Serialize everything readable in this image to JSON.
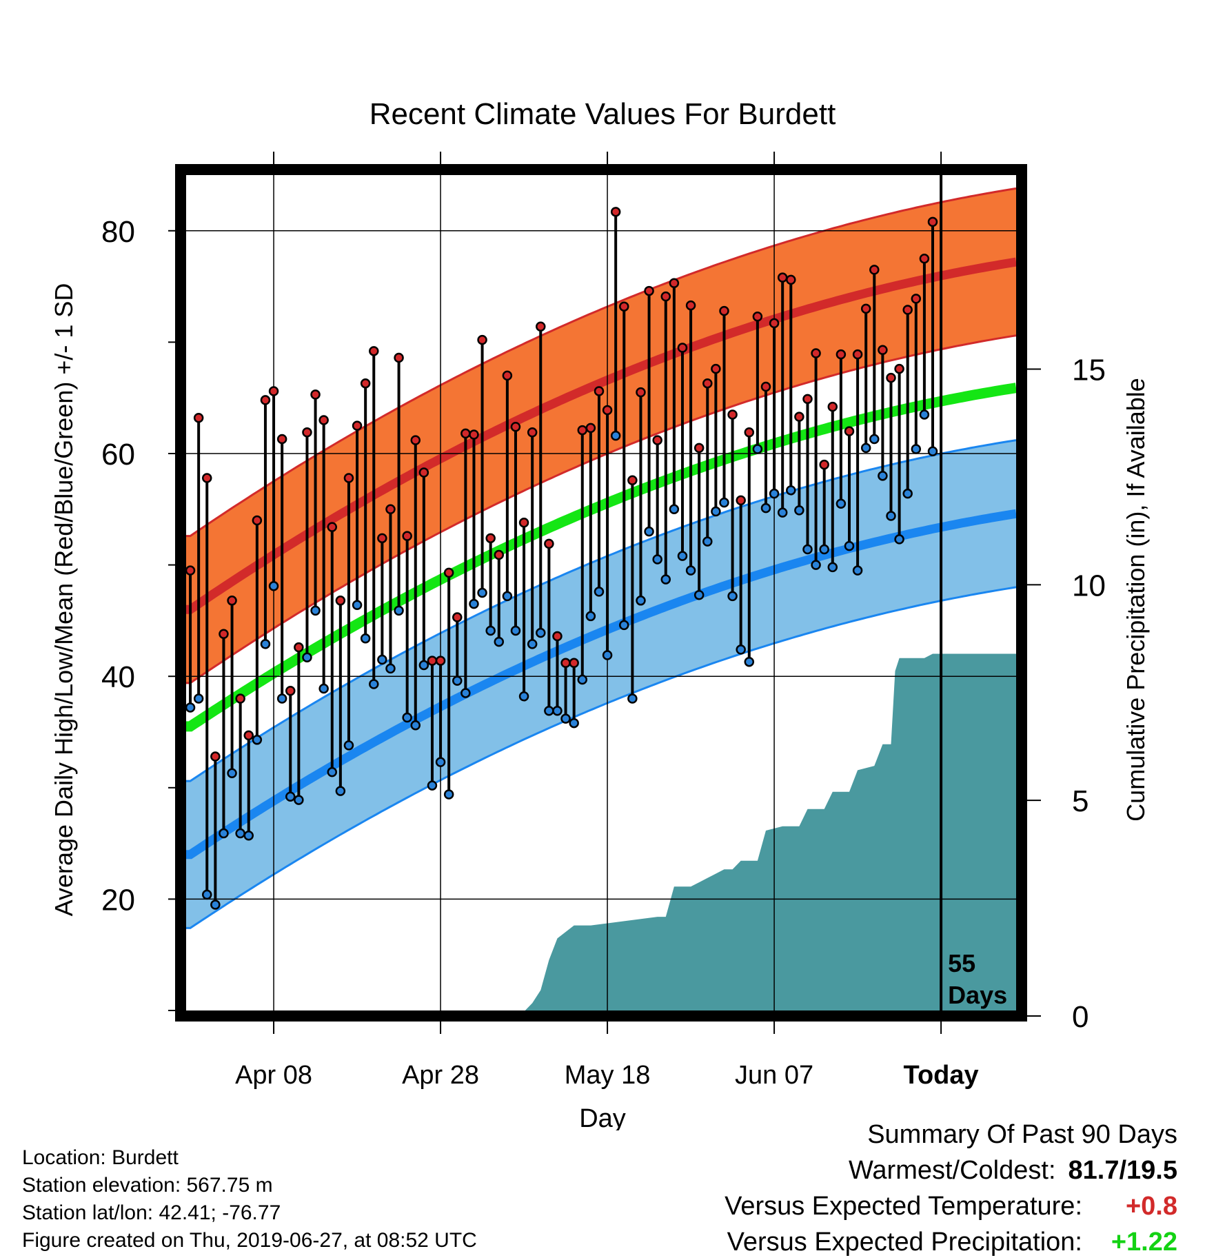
{
  "chart_data": {
    "type": "line",
    "title": "Recent Climate Values For Burdett",
    "xlabel": "Day",
    "ylabel": "Average Daily High/Low/Mean (Red/Blue/Green) +/- 1 SD",
    "y2label": "Cumulative Precipitation (in), If Available",
    "x_tick_labels": [
      "Apr 08",
      "Apr 28",
      "May 18",
      "Jun 07",
      "Today"
    ],
    "x_tick_days": [
      10,
      30,
      50,
      70,
      90
    ],
    "y_ticks": [
      20,
      40,
      60,
      80
    ],
    "y2_ticks": [
      0,
      5,
      10,
      15
    ],
    "ylim": [
      10,
      85
    ],
    "y2lim": [
      0,
      19.5
    ],
    "xlim": [
      -0.5,
      99
    ],
    "today_annotation": "55\nDays",
    "highs": [
      49.5,
      63.2,
      57.8,
      32.8,
      43.8,
      46.8,
      38.0,
      34.7,
      54.0,
      64.8,
      65.6,
      61.3,
      38.7,
      42.6,
      61.9,
      65.3,
      63.0,
      53.4,
      46.8,
      57.8,
      62.5,
      66.3,
      69.2,
      52.4,
      55.0,
      68.6,
      52.6,
      61.2,
      58.3,
      41.4,
      41.4,
      49.3,
      45.3,
      61.8,
      61.7,
      70.2,
      52.4,
      50.9,
      67.0,
      62.4,
      53.8,
      61.9,
      71.4,
      51.9,
      43.6,
      41.2,
      41.2,
      62.1,
      62.3,
      65.6,
      63.9,
      81.7,
      73.2,
      57.6,
      65.5,
      74.6,
      61.2,
      74.1,
      75.3,
      69.5,
      73.3,
      60.5,
      66.3,
      67.6,
      72.8,
      63.5,
      55.8,
      61.9,
      72.3,
      66.0,
      71.7,
      75.8,
      75.6,
      63.3,
      64.9,
      69.0,
      59.0,
      64.2,
      68.9,
      62.0,
      68.9,
      73.0,
      76.5,
      69.3,
      66.8,
      67.6,
      72.9,
      73.9,
      77.5,
      80.8
    ],
    "lows": [
      37.2,
      38.0,
      20.4,
      19.5,
      25.9,
      31.3,
      25.9,
      25.7,
      34.3,
      42.9,
      48.1,
      38.0,
      29.2,
      28.9,
      41.7,
      45.9,
      38.9,
      31.4,
      29.7,
      33.8,
      46.4,
      43.4,
      39.3,
      41.5,
      40.7,
      45.9,
      36.3,
      35.6,
      41.0,
      30.2,
      32.3,
      29.4,
      39.6,
      38.5,
      46.5,
      47.5,
      44.1,
      43.1,
      47.2,
      44.1,
      38.2,
      42.9,
      43.9,
      36.9,
      36.9,
      36.2,
      35.8,
      39.7,
      45.4,
      47.6,
      41.9,
      61.6,
      44.6,
      38.0,
      46.8,
      53.0,
      50.5,
      48.7,
      55.0,
      50.8,
      49.5,
      47.3,
      52.1,
      54.8,
      55.6,
      47.2,
      42.4,
      41.3,
      60.4,
      55.1,
      56.4,
      54.7,
      56.7,
      54.9,
      51.4,
      50.0,
      51.4,
      49.8,
      55.5,
      51.7,
      49.5,
      60.5,
      61.3,
      58.0,
      54.4,
      52.3,
      56.4,
      60.4,
      63.5,
      60.2
    ],
    "high_mean_start": 46.0,
    "high_mean_end": 77.2,
    "low_mean_start": 24.0,
    "low_mean_end": 54.6,
    "high_sd": 6.6,
    "low_sd": 6.6,
    "mean_start": 35.5,
    "mean_end": 65.9,
    "precip_cumulative": [
      [
        0,
        0
      ],
      [
        2,
        0
      ],
      [
        2,
        0.1
      ],
      [
        40,
        0.1
      ],
      [
        41,
        0.3
      ],
      [
        42,
        0.6
      ],
      [
        43,
        1.3
      ],
      [
        44,
        1.8
      ],
      [
        46,
        2.1
      ],
      [
        48,
        2.1
      ],
      [
        52,
        2.2
      ],
      [
        56,
        2.3
      ],
      [
        57,
        2.3
      ],
      [
        58,
        3.0
      ],
      [
        60,
        3.0
      ],
      [
        62,
        3.2
      ],
      [
        64,
        3.4
      ],
      [
        65,
        3.4
      ],
      [
        66,
        3.6
      ],
      [
        68,
        3.6
      ],
      [
        69,
        4.3
      ],
      [
        71,
        4.4
      ],
      [
        73,
        4.4
      ],
      [
        74,
        4.8
      ],
      [
        76,
        4.8
      ],
      [
        77,
        5.2
      ],
      [
        79,
        5.2
      ],
      [
        80,
        5.7
      ],
      [
        82,
        5.8
      ],
      [
        83,
        6.3
      ],
      [
        84,
        6.3
      ],
      [
        84.5,
        8.0
      ],
      [
        85,
        8.3
      ],
      [
        86,
        8.3
      ],
      [
        88,
        8.3
      ],
      [
        89,
        8.4
      ],
      [
        99,
        8.4
      ]
    ],
    "colors": {
      "high_band": "#f47534",
      "high_mean": "#d22a2a",
      "high_edge": "#d22a2a",
      "low_band": "#82c0e8",
      "low_mean": "#1a86f0",
      "low_edge": "#1a86f0",
      "normal_mean": "#14e614",
      "precip": "#4a999f",
      "high_dot": "#d2282a",
      "low_dot": "#2a82d8"
    }
  },
  "footer": {
    "location": "Location: Burdett",
    "elevation": "Station elevation: 567.75 m",
    "latlon": "Station lat/lon: 42.41; -76.77",
    "created": "Figure created on Thu, 2019-06-27, at 08:52 UTC"
  },
  "summary": {
    "heading": "Summary Of Past 90 Days",
    "warm_label": "Warmest/Coldest:",
    "warm_value": "81.7/19.5",
    "temp_label": "Versus Expected Temperature:",
    "temp_value": "+0.8",
    "temp_color": "#d22a2a",
    "precip_label": "Versus Expected Precipitation:",
    "precip_value": "+1.22",
    "precip_color": "#14d214"
  }
}
